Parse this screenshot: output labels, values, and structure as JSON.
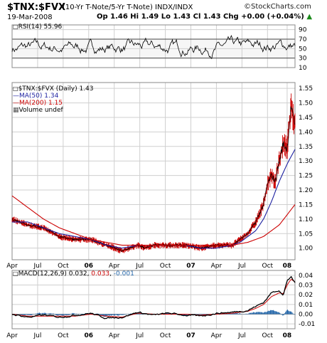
{
  "header": {
    "symbol": "$TNX:$FVX",
    "description": "(10-Yr T-Note/5-Yr T-Note)  INDX/INDX",
    "brand": "©StockCharts.com",
    "date": "19-Mar-2008",
    "quote": "Op 1.46  Hi 1.49  Lo 1.43  Cl 1.43  Chg +0.00 (+0.04%)",
    "quote_arrow": "▲"
  },
  "rsi": {
    "label": "RSI(14) 55.96",
    "last": 55.96
  },
  "price_legend": {
    "main": "$TNX:$FVX (Daily) 1.43",
    "ma50": "MA(50) 1.34",
    "ma200": "MA(200) 1.15",
    "volume": "Volume undef"
  },
  "macd": {
    "label_name": "MACD(12,26,9)",
    "macd": "0.032",
    "signal": "0.033",
    "hist": "-0.001"
  },
  "colors": {
    "price": "#000000",
    "ma50": "#1b1fa0",
    "ma200": "#cc0000",
    "bars": "#cc0000",
    "hist": "#2266aa",
    "grid": "#cfcfcf"
  },
  "chart_data": [
    {
      "type": "line",
      "title": "RSI(14)",
      "ylim": [
        10,
        100
      ],
      "yticks": [
        "90",
        "70",
        "50",
        "30",
        "10"
      ],
      "reference_lines": [
        70,
        30
      ],
      "last": 55.96
    },
    {
      "type": "line",
      "title": "$TNX:$FVX (Daily)",
      "x_ticks": [
        "Apr",
        "Jul",
        "Oct",
        "06",
        "Apr",
        "Jul",
        "Oct",
        "07",
        "Apr",
        "Jul",
        "Oct",
        "08"
      ],
      "ylim": [
        0.96,
        1.57
      ],
      "yticks": [
        "1.55",
        "1.50",
        "1.45",
        "1.40",
        "1.35",
        "1.30",
        "1.25",
        "1.20",
        "1.15",
        "1.10",
        "1.05",
        "1.00"
      ],
      "series": [
        {
          "name": "$TNX:$FVX",
          "points": [
            [
              0,
              1.1
            ],
            [
              8,
              1.08
            ],
            [
              16,
              1.07
            ],
            [
              24,
              1.04
            ],
            [
              32,
              1.03
            ],
            [
              40,
              1.03
            ],
            [
              48,
              1.01
            ],
            [
              56,
              0.99
            ],
            [
              60,
              1.0
            ],
            [
              64,
              1.01
            ],
            [
              68,
              1.0
            ],
            [
              72,
              1.01
            ],
            [
              80,
              1.01
            ],
            [
              88,
              1.01
            ],
            [
              96,
              1.0
            ],
            [
              104,
              1.01
            ],
            [
              112,
              1.01
            ],
            [
              116,
              1.03
            ],
            [
              120,
              1.05
            ],
            [
              124,
              1.09
            ],
            [
              128,
              1.15
            ],
            [
              130,
              1.22
            ],
            [
              132,
              1.25
            ],
            [
              134,
              1.23
            ],
            [
              136,
              1.3
            ],
            [
              138,
              1.36
            ],
            [
              140,
              1.34
            ],
            [
              141,
              1.42
            ],
            [
              142,
              1.49
            ],
            [
              143,
              1.45
            ],
            [
              144,
              1.43
            ]
          ]
        },
        {
          "name": "MA(50)",
          "points": [
            [
              0,
              1.09
            ],
            [
              8,
              1.09
            ],
            [
              16,
              1.07
            ],
            [
              24,
              1.05
            ],
            [
              32,
              1.04
            ],
            [
              40,
              1.03
            ],
            [
              48,
              1.01
            ],
            [
              56,
              1.0
            ],
            [
              64,
              1.01
            ],
            [
              72,
              1.01
            ],
            [
              80,
              1.01
            ],
            [
              88,
              1.01
            ],
            [
              96,
              1.0
            ],
            [
              104,
              1.0
            ],
            [
              112,
              1.01
            ],
            [
              116,
              1.02
            ],
            [
              120,
              1.04
            ],
            [
              124,
              1.06
            ],
            [
              128,
              1.1
            ],
            [
              132,
              1.16
            ],
            [
              136,
              1.23
            ],
            [
              140,
              1.29
            ],
            [
              144,
              1.34
            ]
          ]
        },
        {
          "name": "MA(200)",
          "points": [
            [
              0,
              1.18
            ],
            [
              8,
              1.14
            ],
            [
              16,
              1.1
            ],
            [
              24,
              1.07
            ],
            [
              32,
              1.05
            ],
            [
              40,
              1.03
            ],
            [
              48,
              1.02
            ],
            [
              56,
              1.01
            ],
            [
              64,
              1.01
            ],
            [
              72,
              1.01
            ],
            [
              80,
              1.01
            ],
            [
              88,
              1.01
            ],
            [
              96,
              1.01
            ],
            [
              104,
              1.01
            ],
            [
              112,
              1.01
            ],
            [
              120,
              1.02
            ],
            [
              128,
              1.04
            ],
            [
              136,
              1.08
            ],
            [
              144,
              1.15
            ]
          ]
        }
      ]
    },
    {
      "type": "line",
      "title": "MACD(12,26,9)",
      "x_ticks": [
        "Apr",
        "Jul",
        "Oct",
        "06",
        "Apr",
        "Jul",
        "Oct",
        "07",
        "Apr",
        "Jul",
        "Oct",
        "08"
      ],
      "ylim": [
        -0.015,
        0.045
      ],
      "yticks": [
        "0.04",
        "0.03",
        "0.02",
        "0.01",
        "0.00",
        "-0.01"
      ],
      "series": [
        {
          "name": "MACD",
          "points": [
            [
              0,
              0.0
            ],
            [
              8,
              -0.003
            ],
            [
              16,
              -0.001
            ],
            [
              24,
              -0.003
            ],
            [
              32,
              -0.001
            ],
            [
              40,
              0.001
            ],
            [
              48,
              -0.004
            ],
            [
              56,
              -0.003
            ],
            [
              64,
              0.002
            ],
            [
              72,
              -0.001
            ],
            [
              80,
              0.001
            ],
            [
              88,
              -0.001
            ],
            [
              96,
              -0.002
            ],
            [
              104,
              0.001
            ],
            [
              112,
              0.002
            ],
            [
              116,
              0.003
            ],
            [
              120,
              0.004
            ],
            [
              124,
              0.008
            ],
            [
              128,
              0.012
            ],
            [
              132,
              0.022
            ],
            [
              136,
              0.025
            ],
            [
              138,
              0.019
            ],
            [
              140,
              0.035
            ],
            [
              142,
              0.038
            ],
            [
              144,
              0.032
            ]
          ]
        },
        {
          "name": "Signal",
          "points": [
            [
              0,
              0.0
            ],
            [
              8,
              -0.002
            ],
            [
              16,
              -0.002
            ],
            [
              24,
              -0.002
            ],
            [
              32,
              -0.002
            ],
            [
              40,
              0.0
            ],
            [
              48,
              -0.002
            ],
            [
              56,
              -0.003
            ],
            [
              64,
              0.001
            ],
            [
              72,
              0.0
            ],
            [
              80,
              0.0
            ],
            [
              88,
              0.0
            ],
            [
              96,
              -0.001
            ],
            [
              104,
              0.0
            ],
            [
              112,
              0.001
            ],
            [
              116,
              0.002
            ],
            [
              120,
              0.003
            ],
            [
              124,
              0.006
            ],
            [
              128,
              0.01
            ],
            [
              132,
              0.018
            ],
            [
              136,
              0.022
            ],
            [
              138,
              0.021
            ],
            [
              140,
              0.03
            ],
            [
              142,
              0.036
            ],
            [
              144,
              0.033
            ]
          ]
        },
        {
          "name": "Histogram",
          "points": [
            [
              0,
              0.0
            ],
            [
              8,
              -0.001
            ],
            [
              16,
              0.001
            ],
            [
              24,
              -0.001
            ],
            [
              32,
              0.001
            ],
            [
              40,
              0.001
            ],
            [
              48,
              -0.002
            ],
            [
              56,
              0.0
            ],
            [
              64,
              0.001
            ],
            [
              72,
              -0.001
            ],
            [
              80,
              0.001
            ],
            [
              88,
              -0.001
            ],
            [
              96,
              -0.001
            ],
            [
              104,
              0.001
            ],
            [
              112,
              0.001
            ],
            [
              116,
              0.001
            ],
            [
              120,
              0.001
            ],
            [
              124,
              0.002
            ],
            [
              128,
              0.002
            ],
            [
              132,
              0.004
            ],
            [
              136,
              0.003
            ],
            [
              138,
              -0.002
            ],
            [
              140,
              0.005
            ],
            [
              142,
              0.002
            ],
            [
              144,
              -0.001
            ]
          ]
        }
      ]
    }
  ]
}
